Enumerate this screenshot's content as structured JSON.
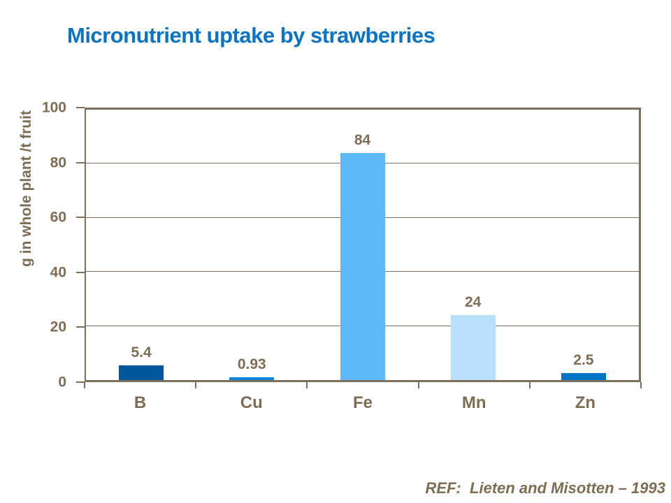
{
  "slide": {
    "title": "Micronutrient uptake by strawberries",
    "reference": "REF:  Lieten and Misotten – 1993"
  },
  "chart_data": {
    "type": "bar",
    "title": "Micronutrient uptake by strawberries",
    "categories": [
      "B",
      "Cu",
      "Fe",
      "Mn",
      "Zn"
    ],
    "values": [
      5.4,
      0.93,
      84,
      24,
      2.5
    ],
    "data_labels": [
      "5.4",
      "0.93",
      "84",
      "24",
      "2.5"
    ],
    "bar_colors": [
      "#00569B",
      "#0A87DC",
      "#5FB8FA",
      "#B9DFFC",
      "#0073C2"
    ],
    "xlabel": "",
    "ylabel": "g in whole plant /t fruit",
    "ylim": [
      0,
      100
    ],
    "yticks": [
      0,
      20,
      40,
      60,
      80,
      100
    ],
    "grid": "horizontal",
    "legend": "none"
  },
  "colors": {
    "title_text": "#0A73C4",
    "axis_text": "#7E6D55",
    "axis_line": "#7D6F5D",
    "background": "#FFFFFF"
  }
}
